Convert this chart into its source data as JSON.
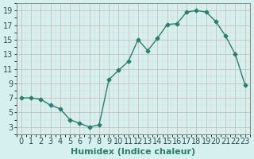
{
  "x": [
    0,
    1,
    2,
    3,
    4,
    5,
    6,
    7,
    8,
    9,
    10,
    11,
    12,
    13,
    14,
    15,
    16,
    17,
    18,
    19,
    20,
    21,
    22,
    23
  ],
  "y": [
    7,
    7,
    6.8,
    6,
    5.5,
    4,
    3.5,
    3,
    3.3,
    9.5,
    10.8,
    12,
    15,
    13.5,
    15.2,
    17.1,
    17.2,
    18.8,
    19,
    18.8,
    17.5,
    15.5,
    13,
    8.8
  ],
  "line_color": "#2e7d6e",
  "marker_color": "#2e7d6e",
  "bg_color": "#d6f0ef",
  "xlabel": "Humidex (Indice chaleur)",
  "ylim": [
    2,
    20
  ],
  "xlim": [
    -0.5,
    23.5
  ],
  "yticks": [
    3,
    5,
    7,
    9,
    11,
    13,
    15,
    17,
    19
  ],
  "xticks": [
    0,
    1,
    2,
    3,
    4,
    5,
    6,
    7,
    8,
    9,
    10,
    11,
    12,
    13,
    14,
    15,
    16,
    17,
    18,
    19,
    20,
    21,
    22,
    23
  ],
  "xlabel_fontsize": 8,
  "tick_fontsize": 7
}
